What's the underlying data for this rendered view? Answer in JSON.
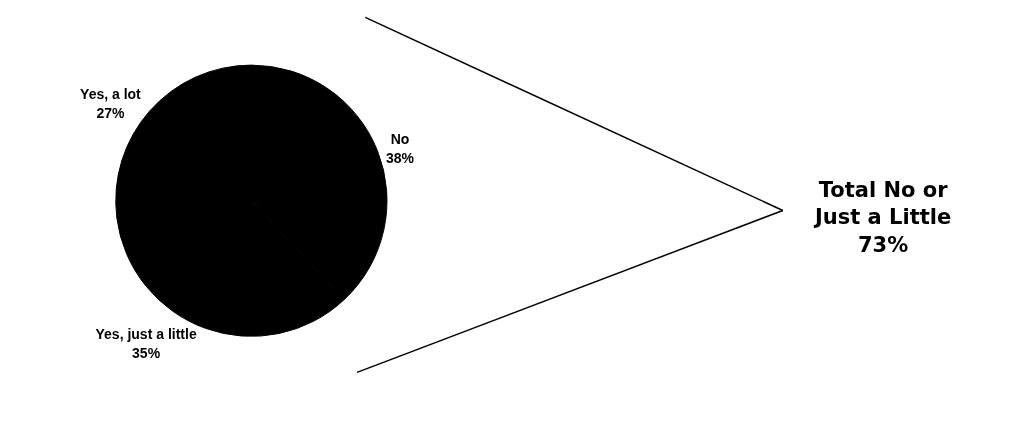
{
  "chart_data": {
    "type": "pie",
    "categories": [
      "No",
      "Yes, just a little",
      "Yes, a lot"
    ],
    "values": [
      38,
      35,
      27
    ],
    "value_labels": [
      "38%",
      "35%",
      "27%"
    ],
    "colors": [
      "#000000",
      "#000000",
      "#000000"
    ],
    "annotations": [
      "Total No or\nJust a Little\n73%"
    ]
  }
}
